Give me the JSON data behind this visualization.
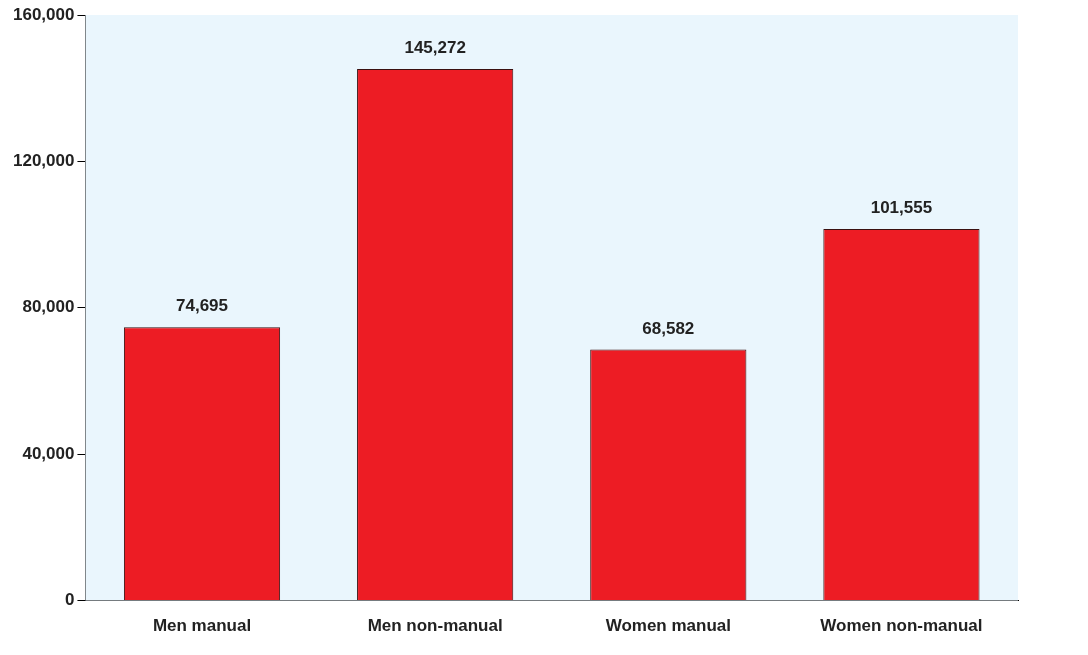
{
  "chart_data": {
    "type": "bar",
    "categories": [
      "Men manual",
      "Men non-manual",
      "Women manual",
      "Women non-manual"
    ],
    "values": [
      74695,
      145272,
      68582,
      101555
    ],
    "color": "#ed1c24",
    "ylim": [
      0,
      160000
    ],
    "value_labels": [
      "74,695",
      "145,272",
      "68,582",
      "101,555"
    ],
    "yticks": [
      0,
      {
        "value": 40000,
        "label": "40,000"
      },
      {
        "value": 80000,
        "label": "80,000"
      },
      {
        "value": 120000,
        "label": "120,000"
      },
      {
        "value": 160000,
        "label": "160,000"
      }
    ],
    "grid": false,
    "legend": false
  }
}
